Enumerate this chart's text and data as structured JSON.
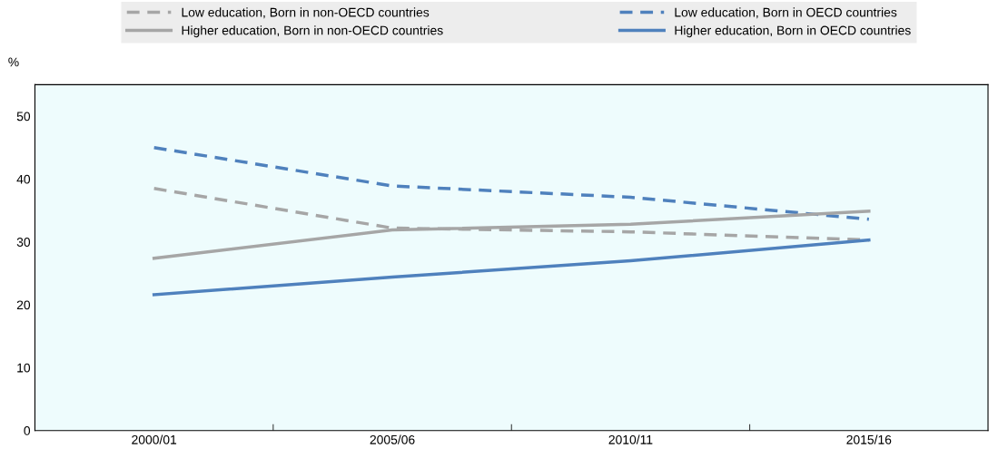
{
  "chart_data": {
    "type": "line",
    "ylabel": "%",
    "categories": [
      "2000/01",
      "2005/06",
      "2010/11",
      "2015/16"
    ],
    "ylim": [
      0,
      55
    ],
    "yticks": [
      0,
      10,
      20,
      30,
      40,
      50
    ],
    "grid": false,
    "legend": "top",
    "marker": "none",
    "series": [
      {
        "name": "Low education, Born in non-OECD countries",
        "color": "#a6a6a6",
        "line_style": "dashed",
        "values": [
          38.5,
          32.2,
          31.6,
          30.3
        ]
      },
      {
        "name": "Low education, Born in OECD countries",
        "color": "#4f81bd",
        "line_style": "dashed",
        "values": [
          45.0,
          38.9,
          37.1,
          33.6
        ]
      },
      {
        "name": "Higher education, Born in non-OECD countries",
        "color": "#a6a6a6",
        "line_style": "solid",
        "values": [
          27.4,
          31.9,
          32.8,
          34.9
        ]
      },
      {
        "name": "Higher education, Born in OECD countries",
        "color": "#4f81bd",
        "line_style": "solid",
        "values": [
          21.6,
          24.4,
          27.0,
          30.3
        ]
      }
    ]
  }
}
